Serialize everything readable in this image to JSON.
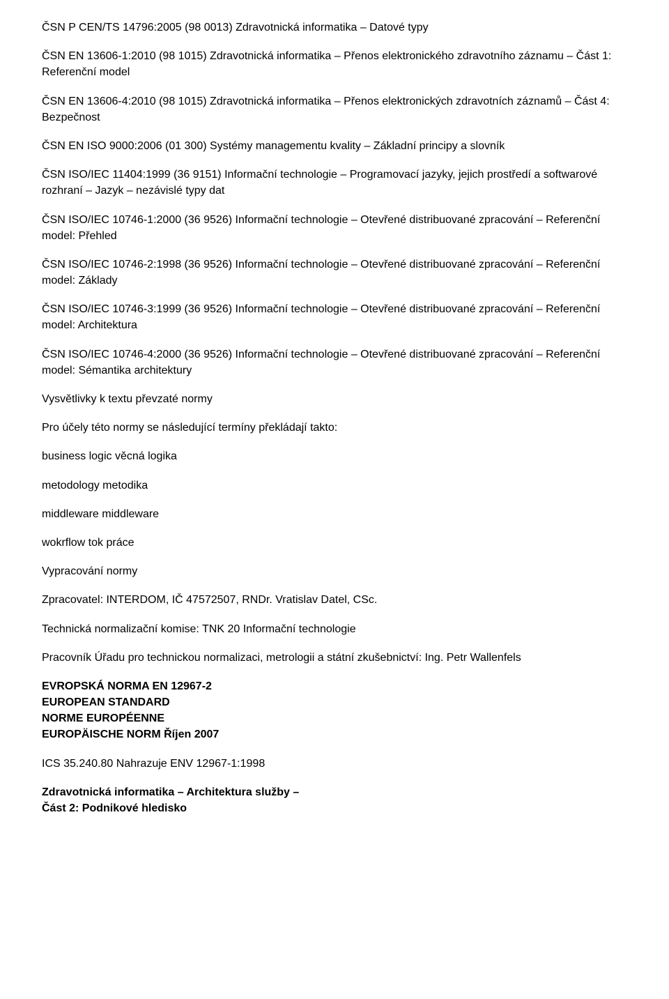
{
  "paragraphs": [
    "ČSN P CEN/TS 14796:2005 (98 0013) Zdravotnická informatika – Datové typy",
    "ČSN EN 13606-1:2010 (98 1015) Zdravotnická informatika – Přenos elektronického zdravotního záznamu – Část 1: Referenční model",
    "ČSN EN 13606-4:2010 (98 1015) Zdravotnická informatika – Přenos elektronických zdravotních záznamů – Část 4: Bezpečnost",
    "ČSN EN ISO 9000:2006 (01 300) Systémy managementu kvality – Základní principy a slovník",
    "ČSN ISO/IEC 11404:1999 (36 9151) Informační technologie – Programovací jazyky, jejich prostředí a softwarové rozhraní – Jazyk – nezávislé typy dat",
    "ČSN ISO/IEC 10746-1:2000 (36 9526) Informační technologie – Otevřené distribuované zpracování – Referenční model: Přehled",
    "ČSN ISO/IEC 10746-2:1998 (36 9526) Informační technologie – Otevřené distribuované zpracování – Referenční model: Základy",
    "ČSN ISO/IEC 10746-3:1999 (36 9526) Informační technologie – Otevřené distribuované zpracování – Referenční model: Architektura",
    "ČSN ISO/IEC 10746-4:2000 (36 9526) Informační technologie – Otevřené distribuované zpracování – Referenční model: Sémantika architektury",
    "Vysvětlivky k textu převzaté normy",
    "Pro účely této normy se následující termíny překládají takto:",
    "business logic věcná logika",
    "metodology metodika",
    "middleware middleware",
    "wokrflow tok práce",
    "Vypracování normy",
    "Zpracovatel: INTERDOM, IČ 47572507, RNDr. Vratislav Datel, CSc.",
    "Technická normalizační komise: TNK 20 Informační technologie",
    "Pracovník Úřadu pro technickou normalizaci, metrologii a státní zkušebnictví: Ing. Petr Wallenfels"
  ],
  "heading": {
    "lines": [
      "EVROPSKÁ NORMA EN 12967-2",
      "EUROPEAN STANDARD",
      "NORME EUROPÉENNE",
      "EUROPÄISCHE NORM Říjen 2007"
    ]
  },
  "ics_line": "ICS 35.240.80 Nahrazuje ENV 12967-1:1998",
  "final": {
    "lines": [
      "Zdravotnická informatika – Architektura služby –",
      "Část 2: Podnikové hledisko"
    ]
  }
}
